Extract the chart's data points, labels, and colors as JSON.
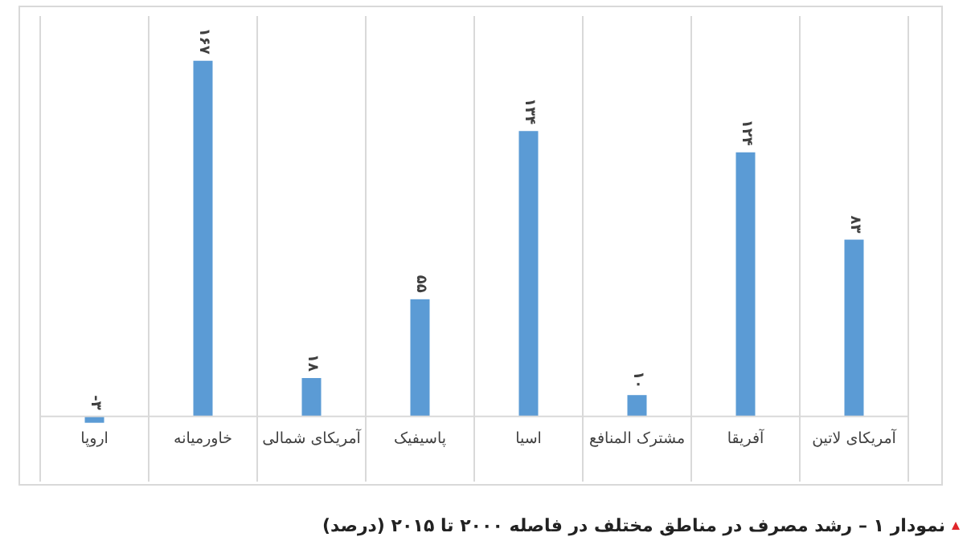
{
  "chart_data": {
    "type": "bar",
    "title": "نمودار ۱ – رشد مصرف در مناطق مختلف در فاصله ۲۰۰۰ تا ۲۰۱۵ (درصد)",
    "categories": [
      "اروپا",
      "خاورمیانه",
      "آمریکای شمالی",
      "پاسیفیک",
      "اسیا",
      "مشترک المنافع",
      "آفریقا",
      "آمریکای لاتین"
    ],
    "values": [
      -3,
      167,
      18,
      55,
      134,
      10,
      124,
      83
    ],
    "value_labels": [
      "-۳",
      "۱۶۷",
      "۱۸",
      "۵۵",
      "۱۳۴",
      "۱۰",
      "۱۲۴",
      "۸۳"
    ],
    "color": "#5b9bd5",
    "ylim": [
      -5,
      188
    ],
    "grid": "x"
  }
}
